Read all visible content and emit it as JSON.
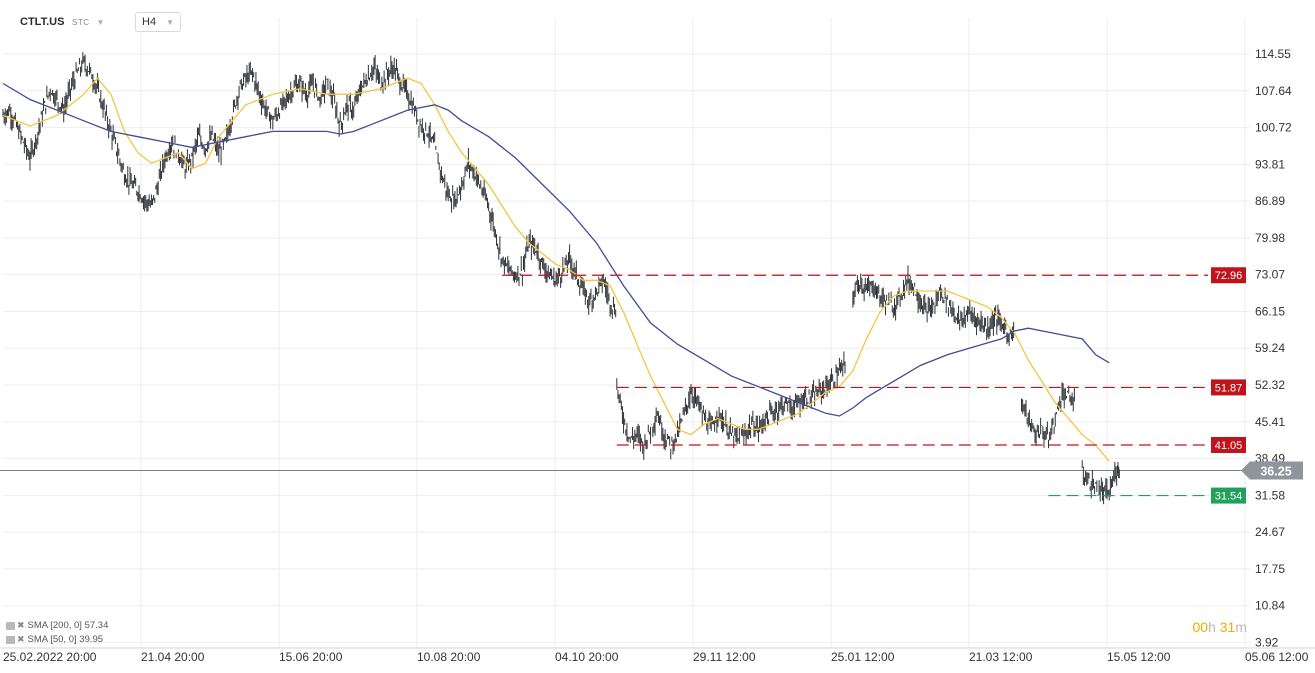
{
  "header": {
    "symbol": "CTLT.US",
    "data_type": "STC",
    "timeframe": "H4"
  },
  "legend": [
    {
      "label": "SMA  [200,  0]  57.34"
    },
    {
      "label": "SMA  [50,  0]  39.95"
    }
  ],
  "countdown": {
    "h": "00",
    "h_unit": "h",
    "m": "31",
    "m_unit": "m"
  },
  "colors": {
    "price": "#2e3138",
    "sma200": "#3f4d96",
    "sma50": "#f5c542",
    "resistance": "#c0141c",
    "support": "#1fa35c",
    "current": "#8e959c",
    "grid": "#eeeeee"
  },
  "chart_data": {
    "type": "candlestick",
    "ylim": [
      3.92,
      118
    ],
    "y_ticks": [
      "114.55",
      "107.64",
      "100.72",
      "93.81",
      "86.89",
      "79.98",
      "73.07",
      "66.15",
      "59.24",
      "52.32",
      "45.41",
      "38.49",
      "31.58",
      "24.67",
      "17.75",
      "10.84",
      "3.92"
    ],
    "x_ticks": [
      "25.02.2022  20:00",
      "21.04  20:00",
      "15.06  20:00",
      "10.08  20:00",
      "04.10  20:00",
      "29.11  12:00",
      "25.01  12:00",
      "21.03  12:00",
      "15.05  12:00",
      "05.06  12:00"
    ],
    "current_price": {
      "label": "36.25",
      "value": 36.25
    },
    "price_series": [
      [
        0,
        103
      ],
      [
        0.5,
        104
      ],
      [
        1,
        101
      ],
      [
        1.5,
        98
      ],
      [
        2,
        95
      ],
      [
        2.5,
        99
      ],
      [
        3,
        104
      ],
      [
        3.5,
        108
      ],
      [
        4,
        106
      ],
      [
        4.5,
        104
      ],
      [
        5,
        108
      ],
      [
        5.5,
        111
      ],
      [
        6,
        113
      ],
      [
        6.5,
        111
      ],
      [
        7,
        108
      ],
      [
        7.5,
        104
      ],
      [
        8,
        100
      ],
      [
        8.5,
        96
      ],
      [
        9,
        92
      ],
      [
        9.5,
        90
      ],
      [
        10,
        89
      ],
      [
        10.5,
        87
      ],
      [
        11,
        86
      ],
      [
        11.5,
        90
      ],
      [
        12,
        95
      ],
      [
        12.5,
        98
      ],
      [
        13,
        96
      ],
      [
        13.5,
        93
      ],
      [
        14,
        95
      ],
      [
        14.5,
        99
      ],
      [
        15,
        97
      ],
      [
        15.5,
        99
      ],
      [
        16,
        96
      ],
      [
        16.5,
        98
      ],
      [
        17,
        103
      ],
      [
        17.5,
        108
      ],
      [
        18,
        110
      ],
      [
        18.5,
        111
      ],
      [
        19,
        107
      ],
      [
        19.5,
        104
      ],
      [
        20,
        102
      ],
      [
        20.5,
        104
      ],
      [
        21,
        106
      ],
      [
        21.5,
        108
      ],
      [
        22,
        109
      ],
      [
        22.5,
        107
      ],
      [
        23,
        109
      ],
      [
        23.5,
        106
      ],
      [
        24,
        109
      ],
      [
        24.5,
        106
      ],
      [
        25,
        101
      ],
      [
        25.5,
        105
      ],
      [
        26,
        104
      ],
      [
        26.5,
        108
      ],
      [
        27,
        110
      ],
      [
        27.5,
        112
      ],
      [
        28,
        109
      ],
      [
        28.5,
        111
      ],
      [
        29,
        112
      ],
      [
        29.5,
        109
      ],
      [
        30,
        107
      ],
      [
        30.5,
        104
      ],
      [
        31,
        101
      ],
      [
        31.5,
        100
      ],
      [
        32,
        97
      ],
      [
        32.5,
        92
      ],
      [
        33,
        88
      ],
      [
        33.5,
        87
      ],
      [
        34,
        90
      ],
      [
        34.5,
        94
      ],
      [
        35,
        92
      ],
      [
        35.5,
        89
      ],
      [
        36,
        86
      ],
      [
        36.5,
        81
      ],
      [
        37,
        76
      ],
      [
        37.5,
        74
      ],
      [
        38,
        73
      ],
      [
        38.5,
        74
      ],
      [
        39,
        79
      ],
      [
        39.5,
        78
      ],
      [
        40,
        75
      ],
      [
        40.5,
        73
      ],
      [
        41,
        72
      ],
      [
        41.5,
        74
      ],
      [
        42,
        76
      ],
      [
        42.5,
        73
      ],
      [
        43,
        70
      ],
      [
        43.5,
        68
      ],
      [
        44,
        70
      ],
      [
        44.5,
        72
      ],
      [
        45,
        68
      ],
      [
        45.5,
        66
      ],
      null,
      [
        45.5,
        52
      ],
      [
        46,
        46
      ],
      [
        46.5,
        42
      ],
      [
        47,
        43
      ],
      [
        47.5,
        41
      ],
      [
        48,
        44
      ],
      [
        48.5,
        47
      ],
      [
        49,
        43
      ],
      [
        49.5,
        41
      ],
      [
        50,
        43
      ],
      [
        50.5,
        47
      ],
      [
        51,
        51
      ],
      [
        51.5,
        49
      ],
      [
        52,
        46
      ],
      [
        52.5,
        44
      ],
      [
        53,
        47
      ],
      [
        53.5,
        45
      ],
      [
        54,
        43
      ],
      [
        54.5,
        42
      ],
      [
        55,
        43
      ],
      [
        55.5,
        45
      ],
      [
        56,
        44
      ],
      [
        56.5,
        46
      ],
      [
        57,
        47
      ],
      [
        57.5,
        48
      ],
      [
        58,
        49
      ],
      [
        58.5,
        48
      ],
      [
        59,
        49
      ],
      [
        59.5,
        50
      ],
      [
        60,
        50
      ],
      [
        60.5,
        51
      ],
      [
        61,
        52
      ],
      [
        61.5,
        53
      ],
      [
        62,
        55
      ],
      [
        62.5,
        56
      ],
      null,
      [
        63,
        69
      ],
      [
        63.5,
        72
      ],
      [
        64,
        70
      ],
      [
        64.5,
        71
      ],
      [
        65,
        69
      ],
      [
        65.5,
        68
      ],
      [
        66,
        67
      ],
      [
        66.5,
        69
      ],
      [
        67,
        72
      ],
      [
        67.5,
        71
      ],
      [
        68,
        68
      ],
      [
        68.5,
        66
      ],
      [
        69,
        67
      ],
      [
        69.5,
        70
      ],
      [
        70,
        68
      ],
      [
        70.5,
        66
      ],
      [
        71,
        64
      ],
      [
        71.5,
        66
      ],
      [
        72,
        65
      ],
      [
        72.5,
        64
      ],
      [
        73,
        63
      ],
      [
        73.5,
        65
      ],
      [
        74,
        64
      ],
      [
        74.5,
        62
      ],
      [
        75,
        62
      ],
      null,
      [
        75.5,
        49
      ],
      [
        76,
        46
      ],
      [
        76.5,
        43
      ],
      [
        77,
        44
      ],
      [
        77.5,
        42
      ],
      [
        78,
        46
      ],
      [
        78.5,
        51
      ],
      [
        79,
        50
      ],
      [
        79.5,
        49
      ],
      null,
      [
        80,
        36
      ],
      [
        80.5,
        34
      ],
      [
        81,
        33
      ],
      [
        81.5,
        32
      ],
      [
        82,
        32
      ],
      [
        82.5,
        36
      ],
      [
        82.8,
        37
      ]
    ],
    "sma50_series": [
      [
        0,
        103
      ],
      [
        2,
        101
      ],
      [
        4,
        103
      ],
      [
        6,
        107
      ],
      [
        7,
        110
      ],
      [
        8,
        107
      ],
      [
        9,
        100
      ],
      [
        10,
        96
      ],
      [
        11,
        94
      ],
      [
        12,
        95
      ],
      [
        13,
        96
      ],
      [
        14,
        93
      ],
      [
        15,
        94
      ],
      [
        16,
        99
      ],
      [
        17,
        102
      ],
      [
        18,
        105
      ],
      [
        20,
        107
      ],
      [
        22,
        108
      ],
      [
        24,
        107
      ],
      [
        26,
        107
      ],
      [
        28,
        108
      ],
      [
        29,
        109
      ],
      [
        30,
        110
      ],
      [
        31,
        109
      ],
      [
        32,
        105
      ],
      [
        33,
        100
      ],
      [
        34,
        96
      ],
      [
        35,
        93
      ],
      [
        36,
        90
      ],
      [
        37,
        86
      ],
      [
        38,
        82
      ],
      [
        39,
        79
      ],
      [
        40,
        77
      ],
      [
        41,
        75
      ],
      [
        42,
        74
      ],
      [
        43,
        72
      ],
      [
        44,
        72
      ],
      [
        45,
        71
      ],
      [
        46,
        66
      ],
      [
        47,
        60
      ],
      [
        48,
        54
      ],
      [
        49,
        49
      ],
      [
        50,
        44
      ],
      [
        51,
        43
      ],
      [
        52,
        45
      ],
      [
        53,
        46
      ],
      [
        54,
        45
      ],
      [
        55,
        44
      ],
      [
        56,
        44
      ],
      [
        57,
        45
      ],
      [
        58,
        46
      ],
      [
        59,
        47
      ],
      [
        60,
        49
      ],
      [
        61,
        51
      ],
      [
        62,
        52
      ],
      [
        63,
        55
      ],
      [
        64,
        61
      ],
      [
        65,
        66
      ],
      [
        66,
        69
      ],
      [
        67,
        70
      ],
      [
        68,
        70
      ],
      [
        69,
        70
      ],
      [
        70,
        70
      ],
      [
        71,
        69
      ],
      [
        72,
        68
      ],
      [
        73,
        67
      ],
      [
        74,
        65
      ],
      [
        75,
        62
      ],
      [
        76,
        57
      ],
      [
        77,
        53
      ],
      [
        78,
        49
      ],
      [
        79,
        46
      ],
      [
        80,
        43
      ],
      [
        81,
        41
      ],
      [
        82,
        38
      ]
    ],
    "sma200_series": [
      [
        0,
        109
      ],
      [
        2,
        106
      ],
      [
        4,
        104
      ],
      [
        6,
        102
      ],
      [
        8,
        100
      ],
      [
        10,
        99
      ],
      [
        12,
        98
      ],
      [
        14,
        97
      ],
      [
        16,
        98
      ],
      [
        18,
        99
      ],
      [
        20,
        100
      ],
      [
        22,
        100
      ],
      [
        24,
        100
      ],
      [
        25,
        99.5
      ],
      [
        26,
        100
      ],
      [
        28,
        102
      ],
      [
        30,
        104
      ],
      [
        32,
        105
      ],
      [
        33,
        104
      ],
      [
        34,
        102
      ],
      [
        36,
        99
      ],
      [
        38,
        95
      ],
      [
        40,
        90
      ],
      [
        42,
        85
      ],
      [
        44,
        79
      ],
      [
        46,
        71
      ],
      [
        48,
        64
      ],
      [
        50,
        60
      ],
      [
        52,
        57
      ],
      [
        54,
        54
      ],
      [
        56,
        52
      ],
      [
        58,
        50
      ],
      [
        59,
        49
      ],
      [
        60,
        48
      ],
      [
        61,
        47
      ],
      [
        62,
        46.5
      ],
      [
        63,
        48
      ],
      [
        64,
        50
      ],
      [
        66,
        53
      ],
      [
        68,
        56
      ],
      [
        70,
        58
      ],
      [
        72,
        59.5
      ],
      [
        74,
        61
      ],
      [
        75,
        62.5
      ],
      [
        76,
        63
      ],
      [
        78,
        62
      ],
      [
        80,
        61
      ],
      [
        81,
        58
      ],
      [
        82,
        56.5
      ]
    ],
    "levels": [
      {
        "label": "72.96",
        "value": 72.96,
        "kind": "resistance",
        "from": 37
      },
      {
        "label": "51.87",
        "value": 51.87,
        "kind": "resistance",
        "from": 45.5
      },
      {
        "label": "41.05",
        "value": 41.05,
        "kind": "resistance",
        "from": 45.5
      },
      {
        "label": "31.54",
        "value": 31.54,
        "kind": "support",
        "from": 77.5
      }
    ]
  }
}
